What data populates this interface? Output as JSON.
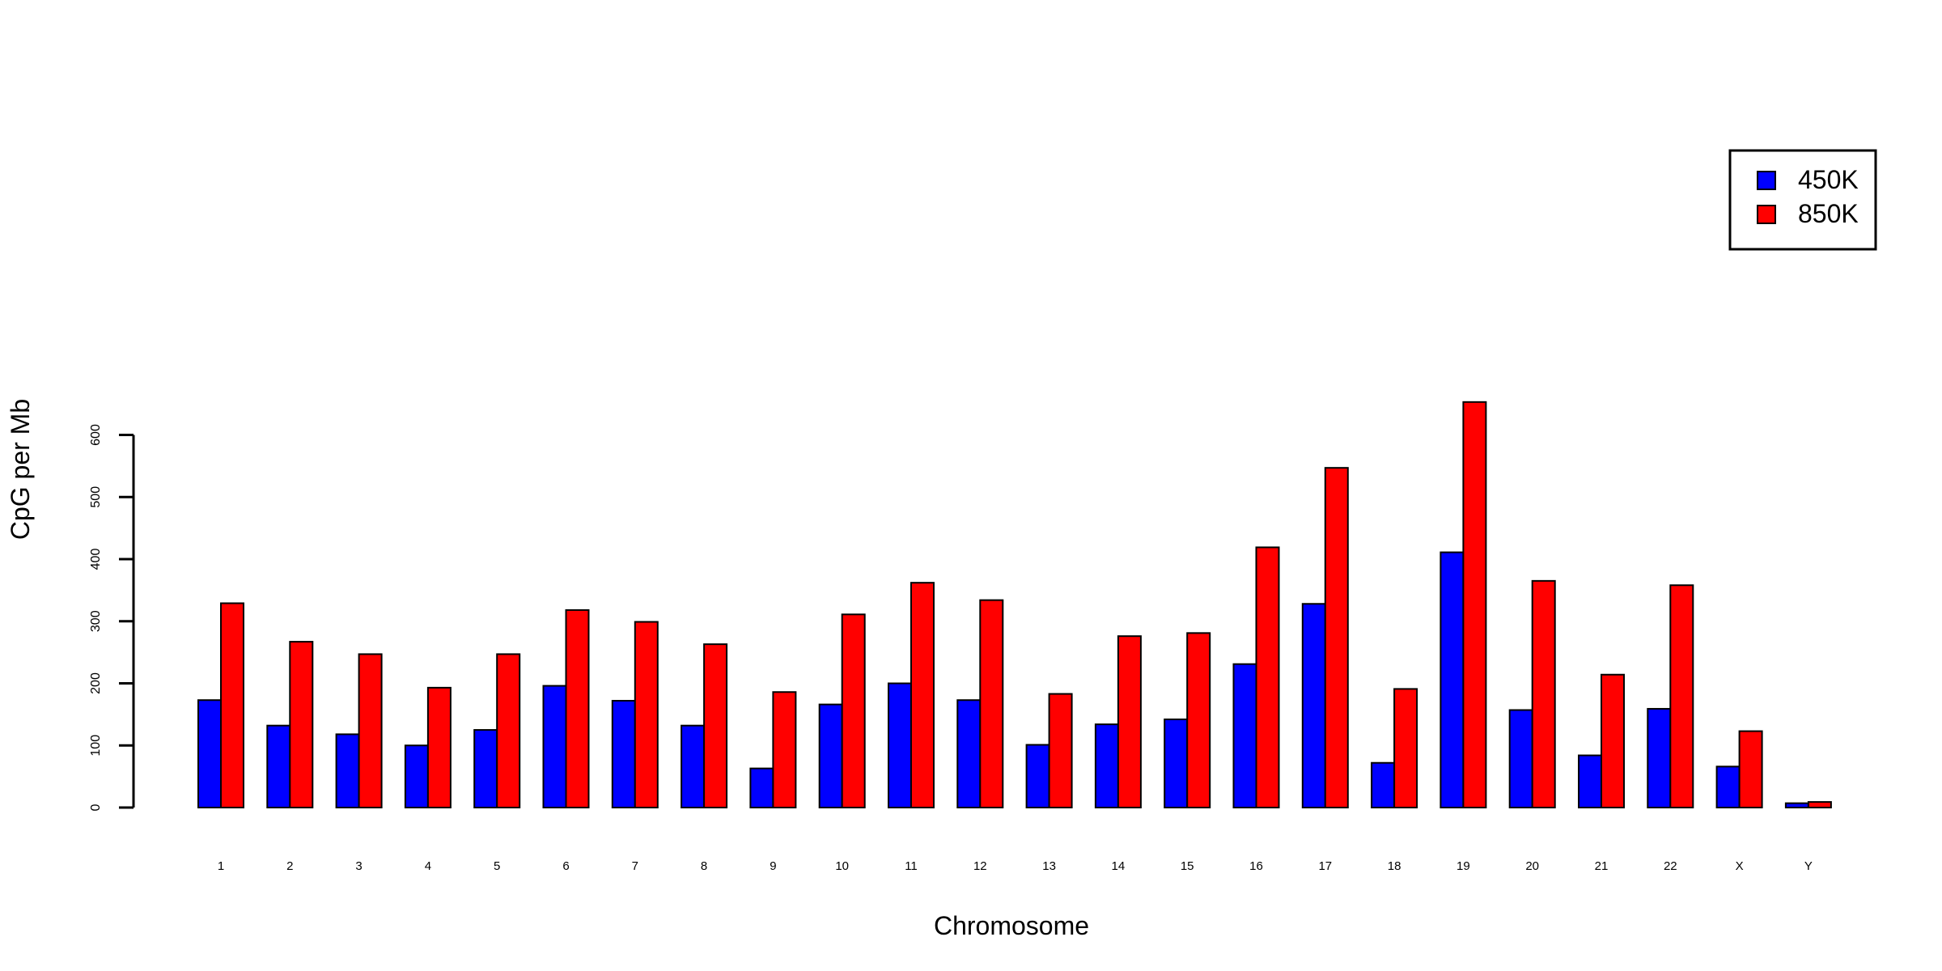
{
  "chart_data": {
    "type": "bar",
    "xlabel": "Chromosome",
    "ylabel": "CpG per Mb",
    "categories": [
      "1",
      "2",
      "3",
      "4",
      "5",
      "6",
      "7",
      "8",
      "9",
      "10",
      "11",
      "12",
      "13",
      "14",
      "15",
      "16",
      "17",
      "18",
      "19",
      "20",
      "21",
      "22",
      "X",
      "Y"
    ],
    "series": [
      {
        "name": "450K",
        "color": "#0000ff",
        "values": [
          173,
          132,
          118,
          100,
          125,
          196,
          172,
          132,
          63,
          166,
          200,
          173,
          101,
          134,
          142,
          231,
          328,
          72,
          411,
          157,
          84,
          159,
          66,
          7
        ]
      },
      {
        "name": "850K",
        "color": "#ff0000",
        "values": [
          329,
          267,
          247,
          193,
          247,
          318,
          299,
          263,
          186,
          311,
          362,
          334,
          183,
          276,
          281,
          419,
          547,
          191,
          653,
          365,
          214,
          358,
          123,
          9
        ]
      }
    ],
    "yticks": [
      0,
      100,
      200,
      300,
      400,
      500,
      600
    ],
    "ylim": [
      0,
      700
    ],
    "grid": false,
    "legend_position": "top-right"
  }
}
